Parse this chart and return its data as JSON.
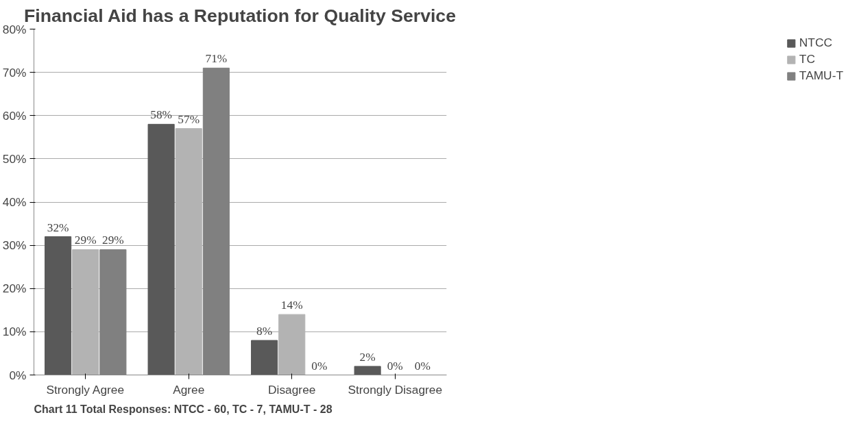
{
  "chart_data": {
    "type": "bar",
    "title": "Financial Aid has a Reputation for Quality Service",
    "categories": [
      "Strongly Agree",
      "Agree",
      "Disagree",
      "Strongly Disagree"
    ],
    "series": [
      {
        "name": "NTCC",
        "color": "#595959",
        "values": [
          32,
          58,
          8,
          2
        ],
        "value_labels": [
          "32%",
          "58%",
          "8%",
          "2%"
        ]
      },
      {
        "name": "TC",
        "color": "#b3b3b3",
        "values": [
          29,
          57,
          14,
          0
        ],
        "value_labels": [
          "29%",
          "57%",
          "14%",
          "0%"
        ]
      },
      {
        "name": "TAMU-T",
        "color": "#808080",
        "values": [
          29,
          71,
          0,
          0
        ],
        "value_labels": [
          "29%",
          "71%",
          "0%",
          "0%"
        ]
      }
    ],
    "ylim": [
      0,
      80
    ],
    "yticks": [
      {
        "value": 0,
        "label": "0%"
      },
      {
        "value": 10,
        "label": "10%"
      },
      {
        "value": 20,
        "label": "20%"
      },
      {
        "value": 30,
        "label": "30%"
      },
      {
        "value": 40,
        "label": "40%"
      },
      {
        "value": 50,
        "label": "50%"
      },
      {
        "value": 60,
        "label": "60%"
      },
      {
        "value": 70,
        "label": "70%"
      },
      {
        "value": 80,
        "label": "80%"
      }
    ],
    "grid": "y",
    "legend": "right",
    "annotations": [
      "Chart 11 Total Responses: NTCC - 60, TC - 7, TAMU-T - 28"
    ]
  }
}
